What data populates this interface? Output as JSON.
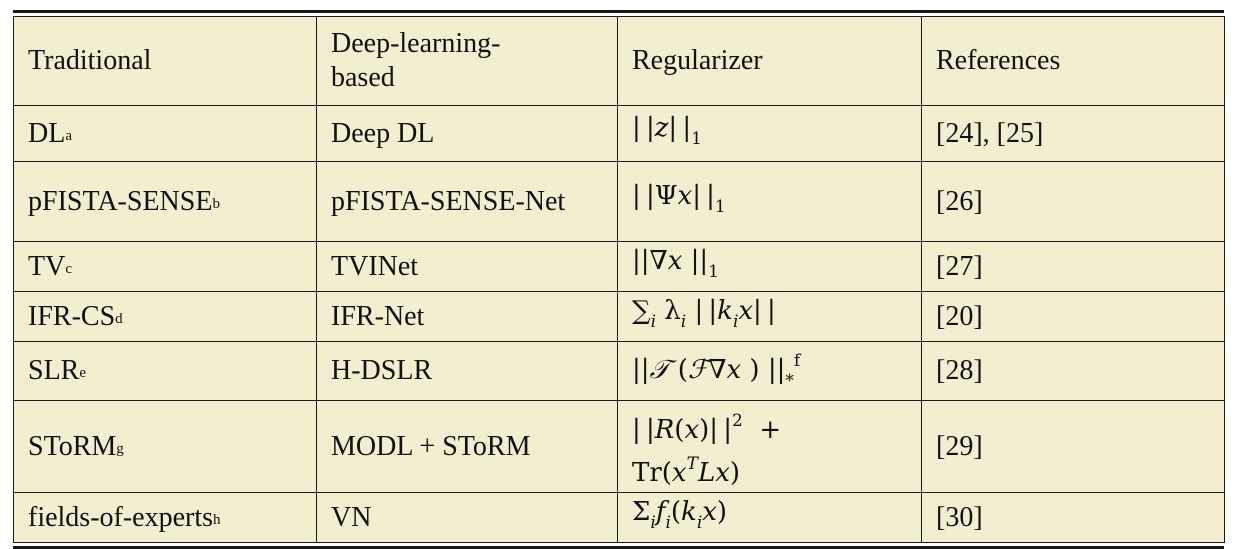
{
  "header": [
    "Traditional",
    "Deep-learning-based",
    "Regularizer",
    "References"
  ],
  "rows": [
    {
      "traditional": "DL",
      "fn": "a",
      "deep": "Deep DL",
      "refs": "[24], [25]"
    },
    {
      "traditional": "pFISTA-SENSE",
      "fn": "b",
      "deep": "pFISTA-SENSE-Net",
      "refs": "[26]"
    },
    {
      "traditional": "TV",
      "fn": "c",
      "deep": "TVINet",
      "refs": "[27]"
    },
    {
      "traditional": "IFR-CS",
      "fn": "d",
      "deep": "IFR-Net",
      "refs": "[20]"
    },
    {
      "traditional": "SLR",
      "fn": "e",
      "deep": "H-DSLR",
      "refs": "[28]"
    },
    {
      "traditional": "SToRM",
      "fn": "g",
      "deep": "MODL + SToRM",
      "refs": "[29]"
    },
    {
      "traditional": "fields-of-experts",
      "fn": "h",
      "deep": "VN",
      "refs": "[30]"
    }
  ],
  "regularizer_fn_f": "f",
  "colors": {
    "cell_bg": "#f2eed0",
    "border": "#1a1a1a"
  }
}
